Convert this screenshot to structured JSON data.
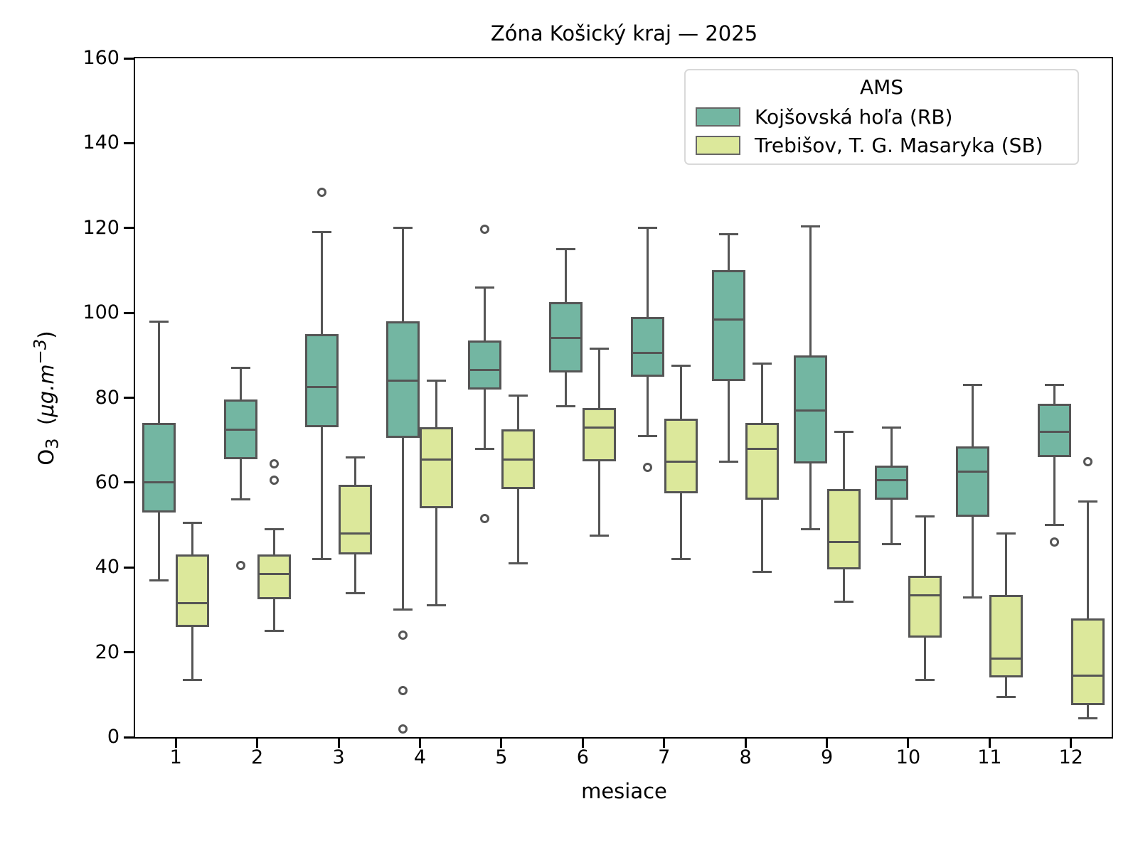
{
  "title": "Zóna Košický kraj —  2025",
  "axes": {
    "xlabel": "mesiace",
    "ylabel_main": "O",
    "ylabel_sub": "3",
    "ylabel_open": "  (",
    "ylabel_unit": "μg.m",
    "ylabel_exp": "−3",
    "ylabel_close": ")"
  },
  "legend": {
    "title": "AMS",
    "entries": [
      {
        "label": "Kojšovská hoľa (RB)"
      },
      {
        "label": "Trebišov, T. G. Masaryka (SB)"
      }
    ]
  },
  "chart_data": {
    "type": "boxplot",
    "title": "Zóna Košický kraj —  2025",
    "xlabel": "mesiace",
    "ylabel": "O3 (μg.m−3)",
    "ylim": [
      0,
      160
    ],
    "yticks": [
      0,
      20,
      40,
      60,
      80,
      100,
      120,
      140,
      160
    ],
    "categories": [
      "1",
      "2",
      "3",
      "4",
      "5",
      "6",
      "7",
      "8",
      "9",
      "10",
      "11",
      "12"
    ],
    "grid": false,
    "legend_position": "upper right",
    "series": [
      {
        "name": "Kojšovská hoľa (RB)",
        "color": "#73B6A2",
        "boxes": [
          {
            "whislo": 37,
            "q1": 53,
            "med": 60,
            "q3": 74,
            "whishi": 98,
            "outliers": []
          },
          {
            "whislo": 56,
            "q1": 65.5,
            "med": 72.5,
            "q3": 79.5,
            "whishi": 87,
            "outliers": [
              40.5
            ]
          },
          {
            "whislo": 42,
            "q1": 73,
            "med": 82.5,
            "q3": 95,
            "whishi": 119,
            "outliers": [
              128.5
            ]
          },
          {
            "whislo": 30,
            "q1": 70.5,
            "med": 84,
            "q3": 98,
            "whishi": 120,
            "outliers": [
              24,
              11,
              2
            ]
          },
          {
            "whislo": 68,
            "q1": 82,
            "med": 86.5,
            "q3": 93.5,
            "whishi": 106,
            "outliers": [
              119.7,
              51.5
            ]
          },
          {
            "whislo": 78,
            "q1": 86,
            "med": 94,
            "q3": 102.5,
            "whishi": 115,
            "outliers": []
          },
          {
            "whislo": 71,
            "q1": 85,
            "med": 90.5,
            "q3": 99,
            "whishi": 120,
            "outliers": [
              63.5
            ]
          },
          {
            "whislo": 65,
            "q1": 84,
            "med": 98.5,
            "q3": 110,
            "whishi": 118.5,
            "outliers": []
          },
          {
            "whislo": 49,
            "q1": 64.5,
            "med": 77,
            "q3": 90,
            "whishi": 120.3,
            "outliers": []
          },
          {
            "whislo": 45.5,
            "q1": 56,
            "med": 60.5,
            "q3": 64,
            "whishi": 73,
            "outliers": []
          },
          {
            "whislo": 33,
            "q1": 52,
            "med": 62.5,
            "q3": 68.5,
            "whishi": 83,
            "outliers": []
          },
          {
            "whislo": 50,
            "q1": 66,
            "med": 72,
            "q3": 78.5,
            "whishi": 83,
            "outliers": [
              46
            ]
          }
        ]
      },
      {
        "name": "Trebišov, T. G. Masaryka (SB)",
        "color": "#DCE89B",
        "boxes": [
          {
            "whislo": 13.5,
            "q1": 26,
            "med": 31.5,
            "q3": 43,
            "whishi": 50.5,
            "outliers": []
          },
          {
            "whislo": 25,
            "q1": 32.5,
            "med": 38.5,
            "q3": 43,
            "whishi": 49,
            "outliers": [
              64.5,
              60.5
            ]
          },
          {
            "whislo": 34,
            "q1": 43,
            "med": 48,
            "q3": 59.5,
            "whishi": 66,
            "outliers": []
          },
          {
            "whislo": 31,
            "q1": 54,
            "med": 65.5,
            "q3": 73,
            "whishi": 84,
            "outliers": []
          },
          {
            "whislo": 41,
            "q1": 58.5,
            "med": 65.5,
            "q3": 72.5,
            "whishi": 80.5,
            "outliers": []
          },
          {
            "whislo": 47.5,
            "q1": 65,
            "med": 73,
            "q3": 77.5,
            "whishi": 91.5,
            "outliers": []
          },
          {
            "whislo": 42,
            "q1": 57.5,
            "med": 65,
            "q3": 75,
            "whishi": 87.5,
            "outliers": []
          },
          {
            "whislo": 39,
            "q1": 56,
            "med": 68,
            "q3": 74,
            "whishi": 88,
            "outliers": []
          },
          {
            "whislo": 32,
            "q1": 39.5,
            "med": 46,
            "q3": 58.5,
            "whishi": 72,
            "outliers": []
          },
          {
            "whislo": 13.5,
            "q1": 23.5,
            "med": 33.5,
            "q3": 38,
            "whishi": 52,
            "outliers": []
          },
          {
            "whislo": 9.5,
            "q1": 14,
            "med": 18.5,
            "q3": 33.5,
            "whishi": 48,
            "outliers": []
          },
          {
            "whislo": 4.5,
            "q1": 7.5,
            "med": 14.5,
            "q3": 28,
            "whishi": 55.5,
            "outliers": [
              65
            ]
          }
        ]
      }
    ]
  },
  "colors": {
    "rb_fill": "#73B6A2",
    "sb_fill": "#DCE89B",
    "line": "#555555",
    "spine": "#000000",
    "legend_border": "#d9d9d9"
  }
}
